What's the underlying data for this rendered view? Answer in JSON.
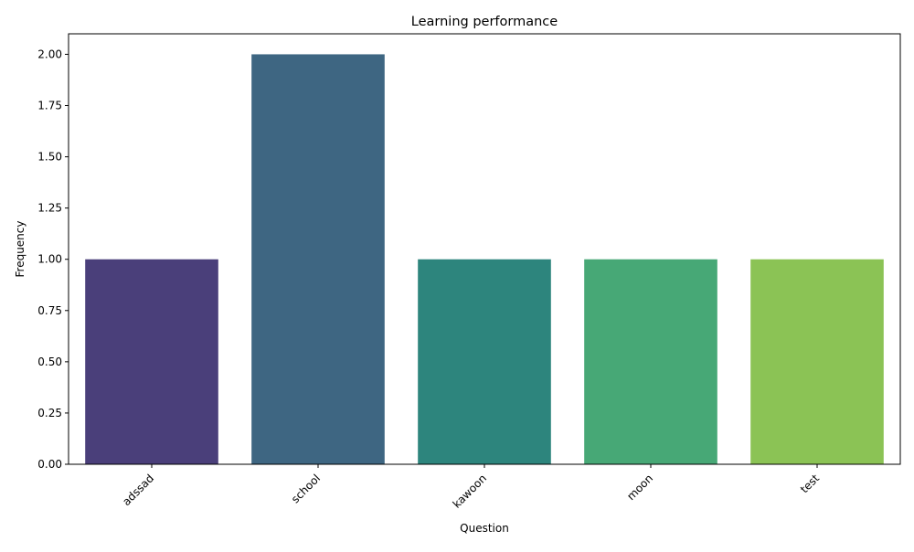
{
  "chart_data": {
    "type": "bar",
    "title": "Learning performance",
    "xlabel": "Question",
    "ylabel": "Frequency",
    "categories": [
      "adssad",
      "school",
      "kawoon",
      "moon",
      "test"
    ],
    "values": [
      1,
      2,
      1,
      1,
      1
    ],
    "colors": [
      "#4a3f7a",
      "#3e6682",
      "#2d857d",
      "#47a876",
      "#8bc355"
    ],
    "ylim": [
      0,
      2.1
    ],
    "yticks": [
      "0.00",
      "0.25",
      "0.50",
      "0.75",
      "1.00",
      "1.25",
      "1.50",
      "1.75",
      "2.00"
    ],
    "grid": false,
    "legend": "none"
  }
}
